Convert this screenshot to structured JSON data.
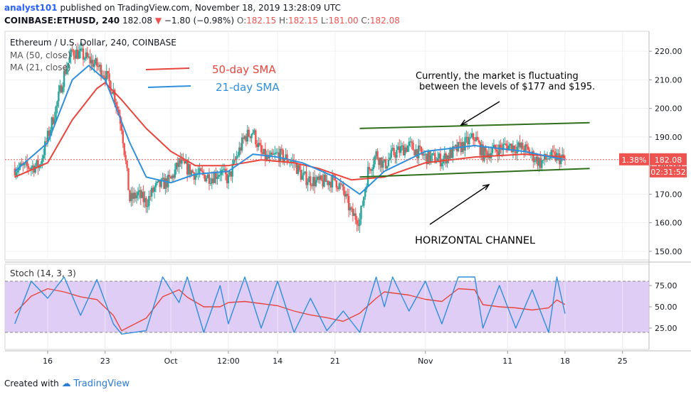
{
  "header": {
    "author": "analyst101",
    "published": "published on TradingView.com, November 18, 2019 13:28:09 UTC",
    "symbol": "COINBASE:ETHUSD, 240",
    "last": "182.08",
    "change_arrow": "▼",
    "change": "−1.80 (−0.98%)",
    "o_label": "O:",
    "o": "182.15",
    "h_label": "H:",
    "h": "182.15",
    "l_label": "L:",
    "l": "181.00",
    "c_label": "C:",
    "c": "182.08"
  },
  "footer": {
    "created_with": "Created with",
    "brand": "TradingView"
  },
  "colors": {
    "up": "#26a69a",
    "down": "#ef5350",
    "sma50": "#e8453c",
    "sma21": "#2e8fdc",
    "channel": "#2f6e1a",
    "stoch_band": "#d9c4f5",
    "stoch_k": "#2e8fdc",
    "stoch_d": "#e8453c"
  },
  "chart_data": {
    "type": "candlestick",
    "title": "Ethereum / U.S. Dollar, 240, COINBASE",
    "legend": [
      "MA (50, close)",
      "MA (21, close)"
    ],
    "annotations": {
      "sma50_label": "50-day SMA",
      "sma21_label": "21-day SMA",
      "note_line1": "Currently, the market is fluctuating",
      "note_line2": "between the levels of $177 and $195.",
      "channel_label": "HORIZONTAL CHANNEL"
    },
    "price_axis": {
      "ylim": [
        147,
        227
      ],
      "ticks": [
        150,
        160,
        170,
        180,
        190,
        200,
        210,
        220
      ],
      "tick_labels": [
        "150.00",
        "160.00",
        "170.00",
        "180.00",
        "190.00",
        "200.00",
        "210.00",
        "220.00"
      ],
      "current_price": "182.08",
      "change_pct": "1.38%",
      "countdown": "02:31:52"
    },
    "x_axis": {
      "ticks": [
        {
          "date": "2019-09-16",
          "label": "16"
        },
        {
          "date": "2019-09-23",
          "label": "23"
        },
        {
          "date": "2019-10-01",
          "label": "Oct"
        },
        {
          "date": "2019-10-08",
          "label": "12:00"
        },
        {
          "date": "2019-10-14",
          "label": "14"
        },
        {
          "date": "2019-10-21",
          "label": "21"
        },
        {
          "date": "2019-11-01",
          "label": "Nov"
        },
        {
          "date": "2019-11-11",
          "label": "11"
        },
        {
          "date": "2019-11-18",
          "label": "18"
        },
        {
          "date": "2019-11-25",
          "label": "25"
        }
      ]
    },
    "close_path": [
      {
        "date": "2019-09-12",
        "close": 179
      },
      {
        "date": "2019-09-15",
        "close": 180
      },
      {
        "date": "2019-09-16",
        "close": 190
      },
      {
        "date": "2019-09-17",
        "close": 200
      },
      {
        "date": "2019-09-18",
        "close": 212
      },
      {
        "date": "2019-09-19",
        "close": 220
      },
      {
        "date": "2019-09-20",
        "close": 219
      },
      {
        "date": "2019-09-21",
        "close": 217
      },
      {
        "date": "2019-09-22",
        "close": 215
      },
      {
        "date": "2019-09-23",
        "close": 212
      },
      {
        "date": "2019-09-24",
        "close": 206
      },
      {
        "date": "2019-09-25",
        "close": 194
      },
      {
        "date": "2019-09-26",
        "close": 168
      },
      {
        "date": "2019-09-27",
        "close": 170
      },
      {
        "date": "2019-09-28",
        "close": 167
      },
      {
        "date": "2019-09-29",
        "close": 172
      },
      {
        "date": "2019-10-01",
        "close": 175
      },
      {
        "date": "2019-10-02",
        "close": 181
      },
      {
        "date": "2019-10-04",
        "close": 177
      },
      {
        "date": "2019-10-06",
        "close": 176
      },
      {
        "date": "2019-10-07",
        "close": 178
      },
      {
        "date": "2019-10-08",
        "close": 175
      },
      {
        "date": "2019-10-09",
        "close": 183
      },
      {
        "date": "2019-10-10",
        "close": 190
      },
      {
        "date": "2019-10-11",
        "close": 192
      },
      {
        "date": "2019-10-12",
        "close": 184
      },
      {
        "date": "2019-10-13",
        "close": 182
      },
      {
        "date": "2019-10-14",
        "close": 184
      },
      {
        "date": "2019-10-16",
        "close": 181
      },
      {
        "date": "2019-10-17",
        "close": 176
      },
      {
        "date": "2019-10-19",
        "close": 174
      },
      {
        "date": "2019-10-21",
        "close": 175
      },
      {
        "date": "2019-10-22",
        "close": 171
      },
      {
        "date": "2019-10-23",
        "close": 163
      },
      {
        "date": "2019-10-24",
        "close": 161
      },
      {
        "date": "2019-10-25",
        "close": 178
      },
      {
        "date": "2019-10-26",
        "close": 184
      },
      {
        "date": "2019-10-27",
        "close": 180
      },
      {
        "date": "2019-10-28",
        "close": 184
      },
      {
        "date": "2019-10-30",
        "close": 187
      },
      {
        "date": "2019-11-01",
        "close": 183
      },
      {
        "date": "2019-11-03",
        "close": 182
      },
      {
        "date": "2019-11-05",
        "close": 186
      },
      {
        "date": "2019-11-07",
        "close": 190
      },
      {
        "date": "2019-11-08",
        "close": 184
      },
      {
        "date": "2019-11-09",
        "close": 185
      },
      {
        "date": "2019-11-11",
        "close": 187
      },
      {
        "date": "2019-11-13",
        "close": 186
      },
      {
        "date": "2019-11-15",
        "close": 181
      },
      {
        "date": "2019-11-16",
        "close": 183
      },
      {
        "date": "2019-11-17",
        "close": 183
      },
      {
        "date": "2019-11-18",
        "close": 182
      }
    ],
    "sma50": [
      {
        "date": "2019-09-12",
        "value": 176
      },
      {
        "date": "2019-09-16",
        "value": 181
      },
      {
        "date": "2019-09-19",
        "value": 196
      },
      {
        "date": "2019-09-22",
        "value": 207
      },
      {
        "date": "2019-09-23",
        "value": 209
      },
      {
        "date": "2019-09-25",
        "value": 203
      },
      {
        "date": "2019-09-28",
        "value": 193
      },
      {
        "date": "2019-10-01",
        "value": 185
      },
      {
        "date": "2019-10-04",
        "value": 180
      },
      {
        "date": "2019-10-08",
        "value": 180
      },
      {
        "date": "2019-10-12",
        "value": 182
      },
      {
        "date": "2019-10-16",
        "value": 181
      },
      {
        "date": "2019-10-19",
        "value": 179
      },
      {
        "date": "2019-10-23",
        "value": 175
      },
      {
        "date": "2019-10-27",
        "value": 176
      },
      {
        "date": "2019-11-01",
        "value": 181
      },
      {
        "date": "2019-11-07",
        "value": 183
      },
      {
        "date": "2019-11-13",
        "value": 184
      },
      {
        "date": "2019-11-18",
        "value": 183
      }
    ],
    "sma21": [
      {
        "date": "2019-09-12",
        "value": 178
      },
      {
        "date": "2019-09-16",
        "value": 188
      },
      {
        "date": "2019-09-19",
        "value": 210
      },
      {
        "date": "2019-09-21",
        "value": 215
      },
      {
        "date": "2019-09-23",
        "value": 210
      },
      {
        "date": "2019-09-26",
        "value": 188
      },
      {
        "date": "2019-09-28",
        "value": 176
      },
      {
        "date": "2019-10-01",
        "value": 174
      },
      {
        "date": "2019-10-04",
        "value": 177
      },
      {
        "date": "2019-10-08",
        "value": 178
      },
      {
        "date": "2019-10-11",
        "value": 184
      },
      {
        "date": "2019-10-14",
        "value": 183
      },
      {
        "date": "2019-10-17",
        "value": 181
      },
      {
        "date": "2019-10-21",
        "value": 176
      },
      {
        "date": "2019-10-24",
        "value": 170
      },
      {
        "date": "2019-10-27",
        "value": 178
      },
      {
        "date": "2019-11-01",
        "value": 185
      },
      {
        "date": "2019-11-07",
        "value": 187
      },
      {
        "date": "2019-11-13",
        "value": 185
      },
      {
        "date": "2019-11-18",
        "value": 182
      }
    ],
    "channel": {
      "upper": [
        {
          "date": "2019-10-24",
          "value": 193
        },
        {
          "date": "2019-11-21",
          "value": 195
        }
      ],
      "lower": [
        {
          "date": "2019-10-24",
          "value": 176
        },
        {
          "date": "2019-11-21",
          "value": 179
        }
      ]
    },
    "stochastic": {
      "label": "Stoch (14, 3, 3)",
      "ylim": [
        0,
        100
      ],
      "band": [
        20,
        80
      ],
      "ticks": [
        25,
        50,
        75
      ],
      "tick_labels": [
        "25.00",
        "50.00",
        "75.00"
      ],
      "k": [
        {
          "date": "2019-09-12",
          "value": 30
        },
        {
          "date": "2019-09-14",
          "value": 80
        },
        {
          "date": "2019-09-16",
          "value": 60
        },
        {
          "date": "2019-09-18",
          "value": 85
        },
        {
          "date": "2019-09-20",
          "value": 40
        },
        {
          "date": "2019-09-22",
          "value": 82
        },
        {
          "date": "2019-09-24",
          "value": 30
        },
        {
          "date": "2019-09-25",
          "value": 18
        },
        {
          "date": "2019-09-28",
          "value": 22
        },
        {
          "date": "2019-09-30",
          "value": 85
        },
        {
          "date": "2019-10-02",
          "value": 55
        },
        {
          "date": "2019-10-03",
          "value": 85
        },
        {
          "date": "2019-10-05",
          "value": 20
        },
        {
          "date": "2019-10-07",
          "value": 75
        },
        {
          "date": "2019-10-08",
          "value": 30
        },
        {
          "date": "2019-10-10",
          "value": 85
        },
        {
          "date": "2019-10-12",
          "value": 25
        },
        {
          "date": "2019-10-14",
          "value": 80
        },
        {
          "date": "2019-10-16",
          "value": 20
        },
        {
          "date": "2019-10-18",
          "value": 60
        },
        {
          "date": "2019-10-20",
          "value": 22
        },
        {
          "date": "2019-10-22",
          "value": 45
        },
        {
          "date": "2019-10-24",
          "value": 20
        },
        {
          "date": "2019-10-26",
          "value": 85
        },
        {
          "date": "2019-10-27",
          "value": 50
        },
        {
          "date": "2019-10-28",
          "value": 85
        },
        {
          "date": "2019-10-30",
          "value": 45
        },
        {
          "date": "2019-11-01",
          "value": 80
        },
        {
          "date": "2019-11-03",
          "value": 30
        },
        {
          "date": "2019-11-05",
          "value": 85
        },
        {
          "date": "2019-11-07",
          "value": 85
        },
        {
          "date": "2019-11-08",
          "value": 25
        },
        {
          "date": "2019-11-10",
          "value": 75
        },
        {
          "date": "2019-11-12",
          "value": 25
        },
        {
          "date": "2019-11-14",
          "value": 70
        },
        {
          "date": "2019-11-16",
          "value": 20
        },
        {
          "date": "2019-11-17",
          "value": 85
        },
        {
          "date": "2019-11-18",
          "value": 42
        }
      ]
    }
  }
}
